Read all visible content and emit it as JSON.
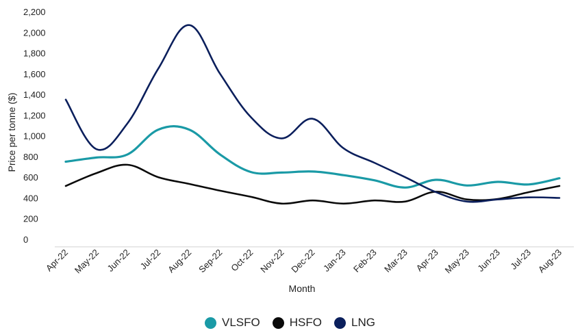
{
  "chart_data": {
    "type": "line",
    "xlabel": "Month",
    "ylabel": "Price per tonne ($)",
    "ylim": [
      0,
      2200
    ],
    "yticks": [
      0,
      200,
      400,
      600,
      800,
      1000,
      1200,
      1400,
      1600,
      1800,
      2000,
      2200
    ],
    "ytick_labels": [
      "0",
      "200",
      "400",
      "600",
      "800",
      "1,000",
      "1,200",
      "1,400",
      "1,600",
      "1,800",
      "2,000",
      "2,200"
    ],
    "grid": false,
    "legend_position": "bottom",
    "categories": [
      "Apr-22",
      "May-22",
      "Jun-22",
      "Jul-22",
      "Aug-22",
      "Sep-22",
      "Oct-22",
      "Nov-22",
      "Dec-22",
      "Jan-23",
      "Feb-23",
      "Mar-23",
      "Apr-23",
      "May-23",
      "Jun-23",
      "Jul-23",
      "Aug-23"
    ],
    "series": [
      {
        "name": "VLSFO",
        "color": "#1a9aa6",
        "values": [
          750,
          790,
          820,
          1060,
          1060,
          820,
          650,
          645,
          655,
          620,
          570,
          500,
          575,
          520,
          555,
          530,
          590
        ]
      },
      {
        "name": "HSFO",
        "color": "#0a0a0a",
        "values": [
          515,
          640,
          720,
          600,
          535,
          470,
          410,
          345,
          375,
          345,
          375,
          365,
          460,
          385,
          390,
          455,
          515
        ]
      },
      {
        "name": "LNG",
        "color": "#0b1f5c",
        "values": [
          1350,
          870,
          1120,
          1650,
          2070,
          1600,
          1180,
          975,
          1165,
          880,
          740,
          600,
          455,
          365,
          385,
          405,
          400
        ]
      }
    ]
  }
}
